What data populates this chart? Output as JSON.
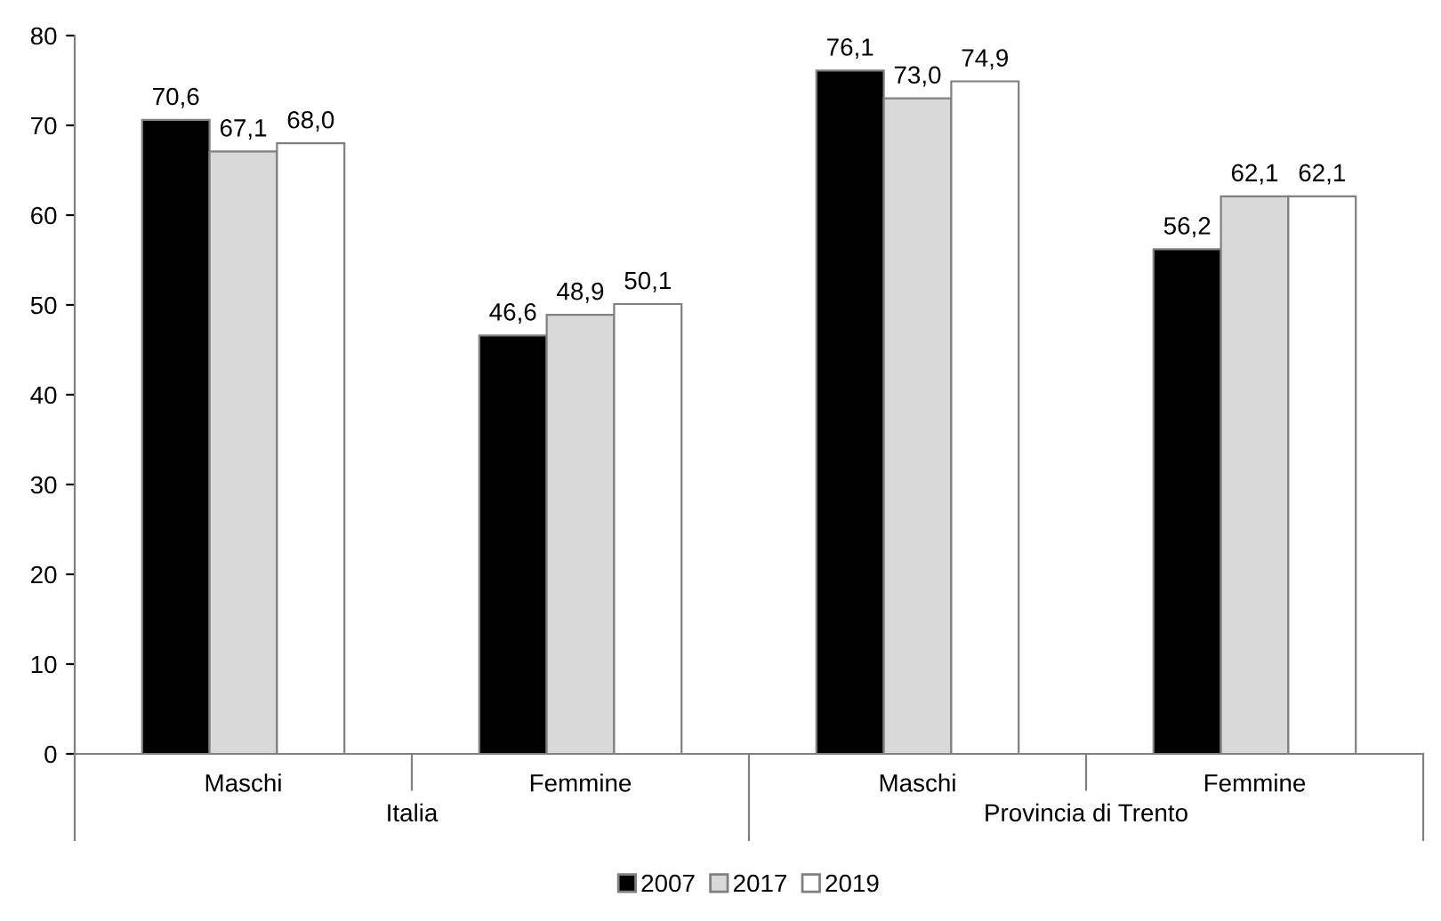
{
  "chart_data": {
    "type": "bar",
    "categories": [
      "Maschi",
      "Femmine",
      "Maschi",
      "Femmine"
    ],
    "series": [
      {
        "name": "2007",
        "color": "#000000",
        "values": [
          70.6,
          46.6,
          76.1,
          56.2
        ],
        "value_labels": [
          "70,6",
          "46,6",
          "76,1",
          "56,2"
        ]
      },
      {
        "name": "2017",
        "color": "#d9d9d9",
        "values": [
          67.1,
          48.9,
          73.0,
          62.1
        ],
        "value_labels": [
          "67,1",
          "48,9",
          "73,0",
          "62,1"
        ]
      },
      {
        "name": "2019",
        "color": "#ffffff",
        "values": [
          68.0,
          50.1,
          74.9,
          62.1
        ],
        "value_labels": [
          "68,0",
          "50,1",
          "74,9",
          "62,1"
        ]
      }
    ],
    "annotations": [
      "Italia",
      "Provincia di Trento"
    ],
    "ylim": [
      0,
      80
    ],
    "yticks": [
      0,
      10,
      20,
      30,
      40,
      50,
      60,
      70,
      80
    ],
    "grid": false,
    "legend": "bottom"
  }
}
